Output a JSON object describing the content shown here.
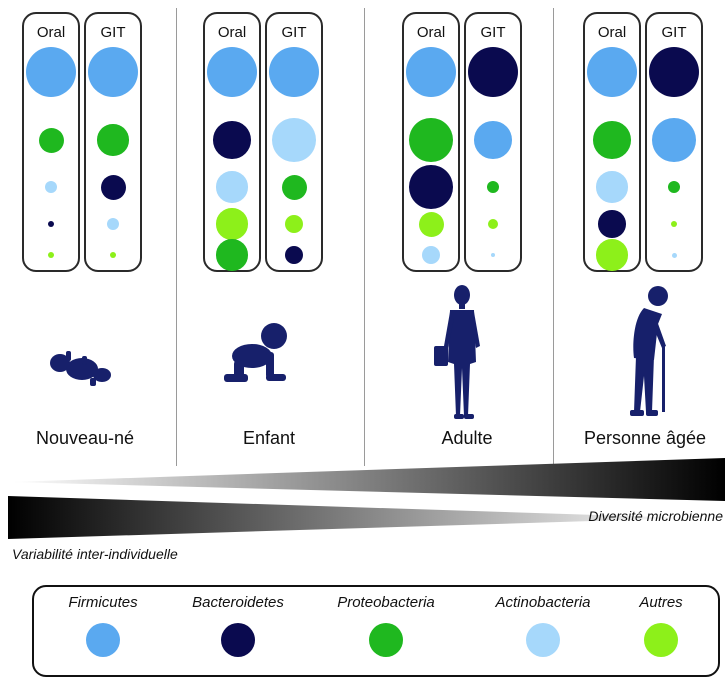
{
  "colors": {
    "firmicutes": "#5aa9f0",
    "bacteroidetes": "#0a0a4f",
    "proteobacteria": "#1fb81f",
    "actinobacteria": "#a6d8fb",
    "autres": "#8df01a",
    "figure": "#17206b"
  },
  "column_labels": {
    "oral": "Oral",
    "git": "GIT"
  },
  "stages": [
    {
      "label": "Nouveau-né",
      "icon": "newborn-icon"
    },
    {
      "label": "Enfant",
      "icon": "crawling-child-icon"
    },
    {
      "label": "Adulte",
      "icon": "adult-woman-icon"
    },
    {
      "label": "Personne âgée",
      "icon": "elderly-person-icon"
    }
  ],
  "abundance": [
    {
      "oral": [
        [
          "firmicutes",
          4
        ],
        [
          "proteobacteria",
          2
        ],
        [
          "actinobacteria",
          1
        ],
        [
          "bacteroidetes",
          0.5
        ],
        [
          "autres",
          0.5
        ]
      ],
      "git": [
        [
          "firmicutes",
          4
        ],
        [
          "proteobacteria",
          2.5
        ],
        [
          "bacteroidetes",
          2
        ],
        [
          "actinobacteria",
          1
        ],
        [
          "autres",
          0.5
        ]
      ]
    },
    {
      "oral": [
        [
          "firmicutes",
          4
        ],
        [
          "bacteroidetes",
          3
        ],
        [
          "actinobacteria",
          2.5
        ],
        [
          "autres",
          2.5
        ],
        [
          "proteobacteria",
          2.5
        ]
      ],
      "git": [
        [
          "firmicutes",
          4
        ],
        [
          "actinobacteria",
          3.5
        ],
        [
          "proteobacteria",
          2
        ],
        [
          "autres",
          1.5
        ],
        [
          "bacteroidetes",
          1.5
        ]
      ]
    },
    {
      "oral": [
        [
          "firmicutes",
          4
        ],
        [
          "proteobacteria",
          3.5
        ],
        [
          "bacteroidetes",
          3.5
        ],
        [
          "autres",
          2
        ],
        [
          "actinobacteria",
          1.5
        ]
      ],
      "git": [
        [
          "bacteroidetes",
          4
        ],
        [
          "firmicutes",
          3
        ],
        [
          "proteobacteria",
          1
        ],
        [
          "autres",
          0.8
        ],
        [
          "actinobacteria",
          0.3
        ]
      ]
    },
    {
      "oral": [
        [
          "firmicutes",
          4
        ],
        [
          "proteobacteria",
          3
        ],
        [
          "actinobacteria",
          2.5
        ],
        [
          "bacteroidetes",
          2.2
        ],
        [
          "autres",
          2.5
        ]
      ],
      "git": [
        [
          "bacteroidetes",
          4
        ],
        [
          "firmicutes",
          3.5
        ],
        [
          "proteobacteria",
          1
        ],
        [
          "autres",
          0.5
        ],
        [
          "actinobacteria",
          0.4
        ]
      ]
    }
  ],
  "gradients": {
    "diversity": "Diversité microbienne",
    "variability": "Variabilité inter-individuelle"
  },
  "legend": [
    {
      "key": "firmicutes",
      "label": "Firmicutes"
    },
    {
      "key": "bacteroidetes",
      "label": "Bacteroidetes"
    },
    {
      "key": "proteobacteria",
      "label": "Proteobacteria"
    },
    {
      "key": "actinobacteria",
      "label": "Actinobacteria"
    },
    {
      "key": "autres",
      "label": "Autres"
    }
  ]
}
